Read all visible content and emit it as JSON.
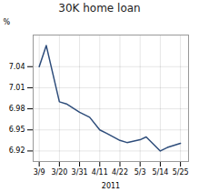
{
  "chart_data": {
    "type": "line",
    "title": "30K home loan",
    "xlabel": "2011",
    "ylabel": "%",
    "x": [
      0.0,
      0.35,
      1.0,
      1.35,
      2.0,
      2.5,
      3.0,
      3.35,
      4.0,
      4.35,
      5.0,
      5.3,
      6.0,
      6.35,
      7.0
    ],
    "values": [
      7.04,
      7.07,
      6.99,
      6.987,
      6.975,
      6.968,
      6.95,
      6.945,
      6.935,
      6.932,
      6.936,
      6.94,
      6.92,
      6.925,
      6.931
    ],
    "color": "#2e4d7b",
    "xlim": [
      -0.3,
      7.4
    ],
    "xticks": [
      {
        "value": 0,
        "label": "3/9"
      },
      {
        "value": 1,
        "label": "3/20"
      },
      {
        "value": 2,
        "label": "3/31"
      },
      {
        "value": 3,
        "label": "4/11"
      },
      {
        "value": 4,
        "label": "4/22"
      },
      {
        "value": 5,
        "label": "5/3"
      },
      {
        "value": 6,
        "label": "5/14"
      },
      {
        "value": 7,
        "label": "5/25"
      }
    ],
    "ylim": [
      6.905,
      7.085
    ],
    "yticks": [
      6.92,
      6.95,
      6.98,
      7.01,
      7.04
    ],
    "grid": true
  }
}
